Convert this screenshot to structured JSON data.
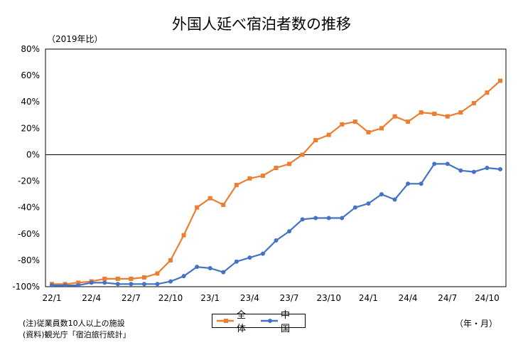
{
  "title": "外国人延べ宿泊者数の推移",
  "unit_note": "（2019年比）",
  "x_unit": "（年・月）",
  "notes": [
    "(注)従業員数10人以上の施設",
    "(資料)観光庁「宿泊旅行統計」"
  ],
  "colors": {
    "all": "#ED7D31",
    "china": "#4472C4"
  },
  "chart_data": {
    "type": "line",
    "ylim": [
      -100,
      80
    ],
    "yticks": [
      "80%",
      "60%",
      "40%",
      "20%",
      "0%",
      "-20%",
      "-40%",
      "-60%",
      "-80%",
      "-100%"
    ],
    "yvalues": [
      80,
      60,
      40,
      20,
      0,
      -20,
      -40,
      -60,
      -80,
      -100
    ],
    "xticks": [
      {
        "index": 0,
        "label": "22/1"
      },
      {
        "index": 3,
        "label": "22/4"
      },
      {
        "index": 6,
        "label": "22/7"
      },
      {
        "index": 9,
        "label": "22/10"
      },
      {
        "index": 12,
        "label": "23/1"
      },
      {
        "index": 15,
        "label": "23/4"
      },
      {
        "index": 18,
        "label": "23/7"
      },
      {
        "index": 21,
        "label": "23/10"
      },
      {
        "index": 24,
        "label": "24/1"
      },
      {
        "index": 27,
        "label": "24/4"
      },
      {
        "index": 30,
        "label": "24/7"
      },
      {
        "index": 33,
        "label": "24/10"
      }
    ],
    "series": [
      {
        "name": "全体",
        "marker": "square",
        "values": [
          -98,
          -98,
          -97,
          -96,
          -94,
          -94,
          -94,
          -93,
          -90,
          -80,
          -61,
          -40,
          -33,
          -38,
          -23,
          -18,
          -16,
          -10,
          -7,
          0,
          11,
          15,
          23,
          25,
          17,
          20,
          29,
          25,
          32,
          31,
          29,
          32,
          39,
          47,
          56
        ]
      },
      {
        "name": "中国",
        "marker": "circle",
        "values": [
          -99,
          -99,
          -99,
          -97,
          -97,
          -98,
          -98,
          -98,
          -98,
          -96,
          -92,
          -85,
          -86,
          -89,
          -81,
          -78,
          -75,
          -65,
          -58,
          -49,
          -48,
          -48,
          -48,
          -40,
          -37,
          -30,
          -34,
          -22,
          -22,
          -7,
          -7,
          -12,
          -13,
          -10,
          -11
        ]
      }
    ]
  }
}
